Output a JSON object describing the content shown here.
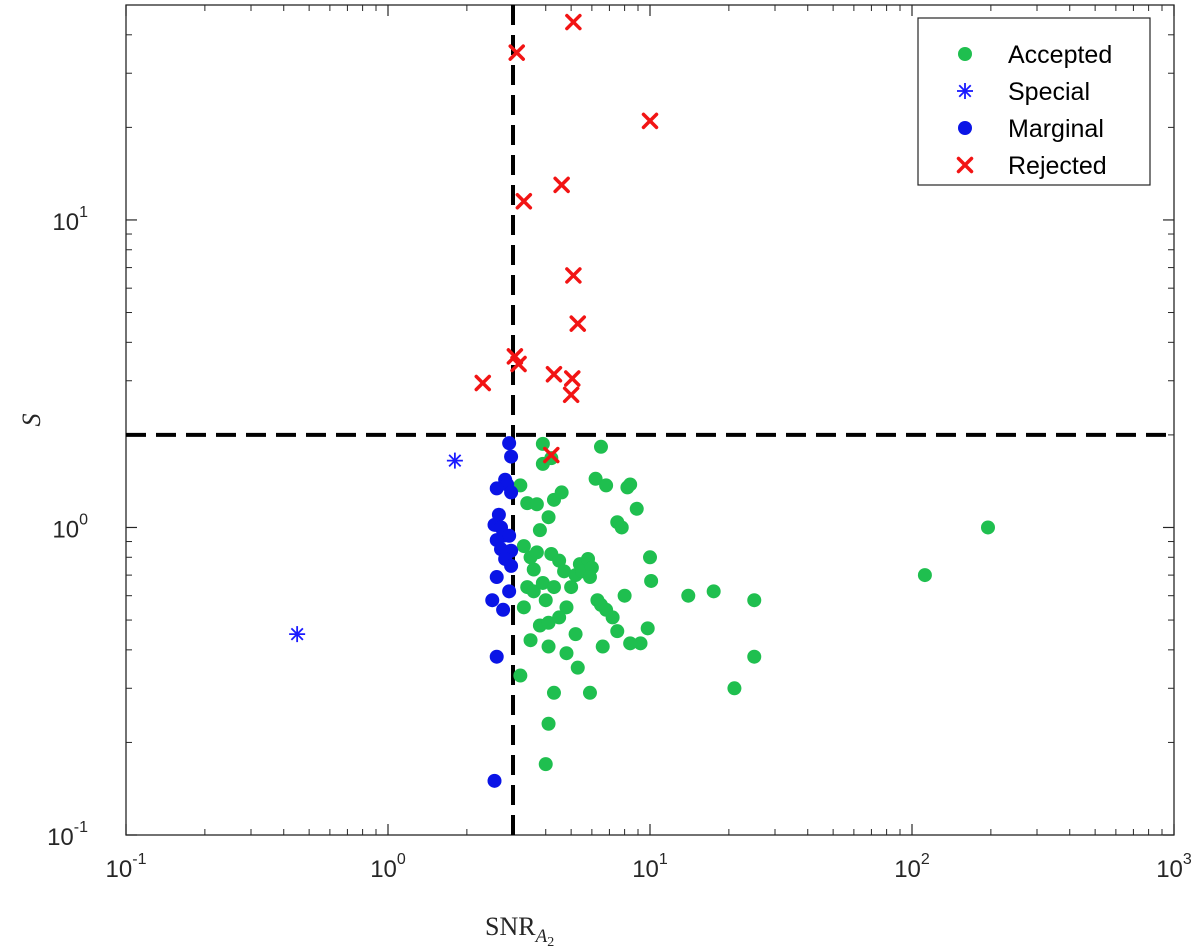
{
  "chart_data": {
    "type": "scatter",
    "xscale": "log",
    "yscale": "log",
    "xlim": [
      0.1,
      1000
    ],
    "ylim": [
      0.1,
      50
    ],
    "xlabel_main": "SNR",
    "xlabel_sub": "A",
    "xlabel_subsub": "2",
    "ylabel": "S",
    "legend_position": "top-right",
    "x_ticks": [
      {
        "base": "10",
        "exp": "-1",
        "value": 0.1
      },
      {
        "base": "10",
        "exp": "0",
        "value": 1
      },
      {
        "base": "10",
        "exp": "1",
        "value": 10
      },
      {
        "base": "10",
        "exp": "2",
        "value": 100
      },
      {
        "base": "10",
        "exp": "3",
        "value": 1000
      }
    ],
    "y_ticks": [
      {
        "base": "10",
        "exp": "-1",
        "value": 0.1
      },
      {
        "base": "10",
        "exp": "0",
        "value": 1
      },
      {
        "base": "10",
        "exp": "1",
        "value": 10
      }
    ],
    "threshold_lines": [
      {
        "orientation": "vertical",
        "value": 3
      },
      {
        "orientation": "horizontal",
        "value": 2
      }
    ],
    "series": [
      {
        "name": "Accepted",
        "marker": "dot",
        "color": "#1FBF4F",
        "points": [
          [
            3.6,
            0.73
          ],
          [
            3.2,
            1.37
          ],
          [
            3.4,
            1.2
          ],
          [
            3.7,
            1.19
          ],
          [
            3.9,
            1.87
          ],
          [
            4.2,
            1.68
          ],
          [
            3.9,
            1.61
          ],
          [
            4.3,
            1.23
          ],
          [
            4.6,
            1.3
          ],
          [
            4.1,
            1.08
          ],
          [
            3.8,
            0.98
          ],
          [
            3.3,
            0.87
          ],
          [
            3.5,
            0.8
          ],
          [
            3.7,
            0.83
          ],
          [
            4.2,
            0.82
          ],
          [
            4.5,
            0.78
          ],
          [
            4.7,
            0.72
          ],
          [
            3.4,
            0.64
          ],
          [
            3.6,
            0.62
          ],
          [
            3.9,
            0.66
          ],
          [
            4.0,
            0.58
          ],
          [
            3.3,
            0.55
          ],
          [
            4.3,
            0.64
          ],
          [
            4.8,
            0.55
          ],
          [
            5.0,
            0.64
          ],
          [
            5.2,
            0.7
          ],
          [
            5.4,
            0.76
          ],
          [
            5.5,
            0.72
          ],
          [
            5.8,
            0.79
          ],
          [
            6.0,
            0.74
          ],
          [
            5.9,
            0.69
          ],
          [
            6.2,
            1.44
          ],
          [
            6.5,
            1.83
          ],
          [
            6.8,
            1.37
          ],
          [
            7.5,
            1.04
          ],
          [
            7.8,
            1.0
          ],
          [
            8.2,
            1.35
          ],
          [
            8.4,
            1.38
          ],
          [
            8.9,
            1.15
          ],
          [
            6.3,
            0.58
          ],
          [
            6.5,
            0.56
          ],
          [
            6.8,
            0.54
          ],
          [
            7.2,
            0.51
          ],
          [
            7.5,
            0.46
          ],
          [
            8.0,
            0.6
          ],
          [
            10.0,
            0.8
          ],
          [
            10.1,
            0.67
          ],
          [
            9.8,
            0.47
          ],
          [
            9.2,
            0.42
          ],
          [
            8.4,
            0.42
          ],
          [
            6.6,
            0.41
          ],
          [
            14.0,
            0.6
          ],
          [
            17.5,
            0.62
          ],
          [
            25.0,
            0.58
          ],
          [
            25.0,
            0.38
          ],
          [
            21.0,
            0.3
          ],
          [
            3.8,
            0.48
          ],
          [
            4.1,
            0.49
          ],
          [
            4.5,
            0.51
          ],
          [
            5.2,
            0.45
          ],
          [
            4.8,
            0.39
          ],
          [
            4.1,
            0.41
          ],
          [
            3.5,
            0.43
          ],
          [
            3.2,
            0.33
          ],
          [
            4.3,
            0.29
          ],
          [
            5.3,
            0.35
          ],
          [
            5.9,
            0.29
          ],
          [
            4.1,
            0.23
          ],
          [
            4.0,
            0.17
          ],
          [
            112.0,
            0.7
          ],
          [
            195.0,
            1.0
          ]
        ]
      },
      {
        "name": "Special",
        "marker": "asterisk",
        "color": "#1A1AFF",
        "points": [
          [
            1.8,
            1.65
          ],
          [
            0.45,
            0.45
          ]
        ]
      },
      {
        "name": "Marginal",
        "marker": "dot",
        "color": "#0A14E6",
        "points": [
          [
            2.9,
            1.88
          ],
          [
            2.95,
            1.7
          ],
          [
            2.8,
            1.43
          ],
          [
            2.85,
            1.38
          ],
          [
            2.6,
            1.34
          ],
          [
            2.95,
            1.3
          ],
          [
            2.65,
            1.1
          ],
          [
            2.55,
            1.02
          ],
          [
            2.7,
            1.0
          ],
          [
            2.75,
            0.94
          ],
          [
            2.9,
            0.94
          ],
          [
            2.6,
            0.91
          ],
          [
            2.7,
            0.85
          ],
          [
            2.95,
            0.84
          ],
          [
            2.8,
            0.79
          ],
          [
            2.95,
            0.75
          ],
          [
            2.6,
            0.69
          ],
          [
            2.9,
            0.62
          ],
          [
            2.5,
            0.58
          ],
          [
            2.75,
            0.54
          ],
          [
            2.6,
            0.38
          ],
          [
            2.55,
            0.15
          ]
        ]
      },
      {
        "name": "Rejected",
        "marker": "x",
        "color": "#F21414",
        "points": [
          [
            5.1,
            44.0
          ],
          [
            3.1,
            35.0
          ],
          [
            10.0,
            21.0
          ],
          [
            4.6,
            13.0
          ],
          [
            3.3,
            11.5
          ],
          [
            5.1,
            6.6
          ],
          [
            5.3,
            4.6
          ],
          [
            3.05,
            3.6
          ],
          [
            3.15,
            3.4
          ],
          [
            2.3,
            2.95
          ],
          [
            4.3,
            3.15
          ],
          [
            5.05,
            3.05
          ],
          [
            5.0,
            2.7
          ],
          [
            4.2,
            1.72
          ]
        ]
      }
    ]
  }
}
